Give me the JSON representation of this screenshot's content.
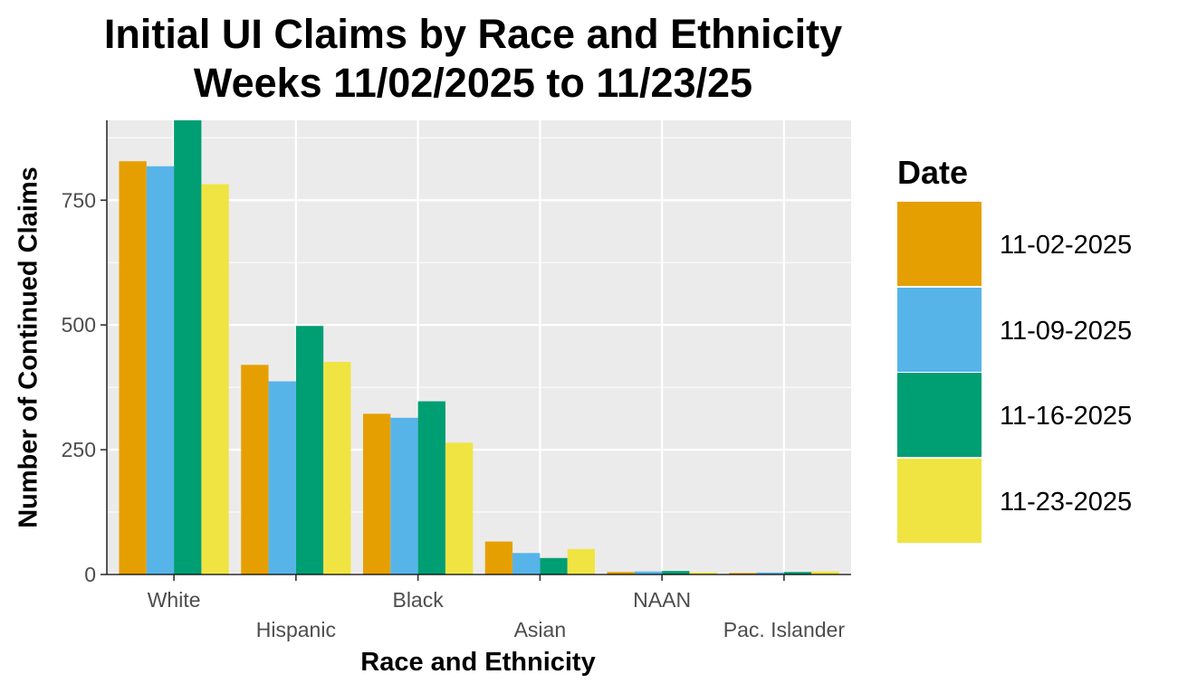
{
  "chart_data": {
    "type": "bar",
    "title": "Initial UI Claims by Race and Ethnicity",
    "subtitle": "Weeks 11/02/2025 to 11/23/25",
    "xlabel": "Race and Ethnicity",
    "ylabel": "Number of Continued Claims",
    "categories": [
      "White",
      "Hispanic",
      "Black",
      "Asian",
      "NAAN",
      "Pac. Islander"
    ],
    "yticks": [
      0,
      250,
      500,
      750
    ],
    "ylim": [
      0,
      910
    ],
    "grid": true,
    "legend": {
      "title": "Date",
      "position": "right"
    },
    "series": [
      {
        "name": "11-02-2025",
        "color": "#E69F00",
        "values": [
          828,
          420,
          322,
          66,
          5,
          3
        ]
      },
      {
        "name": "11-09-2025",
        "color": "#56B4E9",
        "values": [
          818,
          387,
          314,
          43,
          6,
          4
        ]
      },
      {
        "name": "11-16-2025",
        "color": "#009E73",
        "values": [
          910,
          498,
          347,
          33,
          7,
          5
        ]
      },
      {
        "name": "11-23-2025",
        "color": "#F0E442",
        "values": [
          782,
          426,
          264,
          51,
          4,
          6
        ]
      }
    ]
  }
}
